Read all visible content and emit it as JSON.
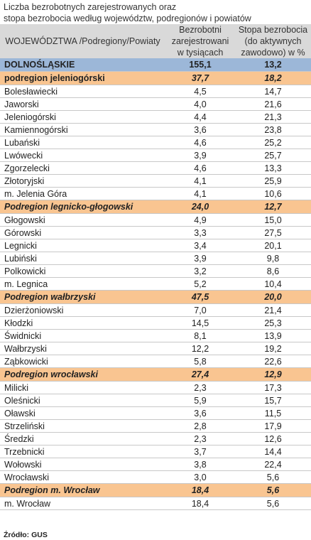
{
  "title_lines": [
    "Liczba bezrobotnych zarejestrowanych oraz",
    "stopa bezrobocia według województw, podregionów  i  powiatów"
  ],
  "headers": {
    "col1": "WOJEWÓDZTWA /Podregiony/Powiaty",
    "col2_lines": [
      "Bezrobotni",
      "zarejestrowani",
      "w tysiącach"
    ],
    "col3_lines": [
      "Stopa bezrobocia",
      "(do aktywnych",
      "zawodowo) w %"
    ]
  },
  "rows": [
    {
      "type": "voiv",
      "name": "DOLNOŚLĄSKIE",
      "unemployed": "155,1",
      "rate": "13,2"
    },
    {
      "type": "sub",
      "italic_name": false,
      "name": "podregion   jeleniogórski",
      "unemployed": "37,7",
      "rate": "18,2"
    },
    {
      "type": "pow",
      "name": "Bolesławiecki",
      "unemployed": "4,5",
      "rate": "14,7"
    },
    {
      "type": "pow",
      "name": "Jaworski",
      "unemployed": "4,0",
      "rate": "21,6"
    },
    {
      "type": "pow",
      "name": "Jeleniogórski",
      "unemployed": "4,4",
      "rate": "21,3"
    },
    {
      "type": "pow",
      "name": "Kamiennogórski",
      "unemployed": "3,6",
      "rate": "23,8"
    },
    {
      "type": "pow",
      "name": "Lubański",
      "unemployed": "4,6",
      "rate": "25,2"
    },
    {
      "type": "pow",
      "name": "Lwówecki",
      "unemployed": "3,9",
      "rate": "25,7"
    },
    {
      "type": "pow",
      "name": "Zgorzelecki",
      "unemployed": "4,6",
      "rate": "13,3"
    },
    {
      "type": "pow",
      "name": "Złotoryjski",
      "unemployed": "4,1",
      "rate": "25,9"
    },
    {
      "type": "pow",
      "name": "m. Jelenia Góra",
      "unemployed": "4,1",
      "rate": "10,6"
    },
    {
      "type": "sub",
      "italic_name": true,
      "name": "Podregion legnicko-głogowski",
      "unemployed": "24,0",
      "rate": "12,7"
    },
    {
      "type": "pow",
      "name": "Głogowski",
      "unemployed": "4,9",
      "rate": "15,0"
    },
    {
      "type": "pow",
      "name": "Górowski",
      "unemployed": "3,3",
      "rate": "27,5"
    },
    {
      "type": "pow",
      "name": "Legnicki",
      "unemployed": "3,4",
      "rate": "20,1"
    },
    {
      "type": "pow",
      "name": "Lubiński",
      "unemployed": "3,9",
      "rate": "9,8"
    },
    {
      "type": "pow",
      "name": "Polkowicki",
      "unemployed": "3,2",
      "rate": "8,6"
    },
    {
      "type": "pow",
      "name": "m. Legnica",
      "unemployed": "5,2",
      "rate": "10,4"
    },
    {
      "type": "sub",
      "italic_name": true,
      "name": "Podregion wałbrzyski",
      "unemployed": "47,5",
      "rate": "20,0"
    },
    {
      "type": "pow",
      "name": "Dzierżoniowski",
      "unemployed": "7,0",
      "rate": "21,4"
    },
    {
      "type": "pow",
      "name": "Kłodzki",
      "unemployed": "14,5",
      "rate": "25,3"
    },
    {
      "type": "pow",
      "name": "Świdnicki",
      "unemployed": "8,1",
      "rate": "13,9"
    },
    {
      "type": "pow",
      "name": "Wałbrzyski",
      "unemployed": "12,2",
      "rate": "19,2"
    },
    {
      "type": "pow",
      "name": "Ząbkowicki",
      "unemployed": "5,8",
      "rate": "22,6"
    },
    {
      "type": "sub",
      "italic_name": true,
      "name": "Podregion wrocławski",
      "unemployed": "27,4",
      "rate": "12,9"
    },
    {
      "type": "pow",
      "name": "Milicki",
      "unemployed": "2,3",
      "rate": "17,3"
    },
    {
      "type": "pow",
      "name": "Oleśnicki",
      "unemployed": "5,9",
      "rate": "15,7"
    },
    {
      "type": "pow",
      "name": "Oławski",
      "unemployed": "3,6",
      "rate": "11,5"
    },
    {
      "type": "pow",
      "name": "Strzeliński",
      "unemployed": "2,8",
      "rate": "17,9"
    },
    {
      "type": "pow",
      "name": "Średzki",
      "unemployed": "2,3",
      "rate": "12,6"
    },
    {
      "type": "pow",
      "name": "Trzebnicki",
      "unemployed": "3,7",
      "rate": "14,4"
    },
    {
      "type": "pow",
      "name": "Wołowski",
      "unemployed": "3,8",
      "rate": "22,4"
    },
    {
      "type": "pow",
      "name": "Wrocławski",
      "unemployed": "3,0",
      "rate": "5,6"
    },
    {
      "type": "sub",
      "italic_name": true,
      "name": "Podregion m. Wrocław",
      "unemployed": "18,4",
      "rate": "5,6"
    },
    {
      "type": "pow",
      "name": "m. Wrocław",
      "unemployed": "18,4",
      "rate": "5,6"
    }
  ],
  "source": "Źródło: GUS",
  "colors": {
    "header_bg": "#d9d9d9",
    "voivodeship_bg": "#9cb7d8",
    "subregion_bg": "#f9c591"
  }
}
